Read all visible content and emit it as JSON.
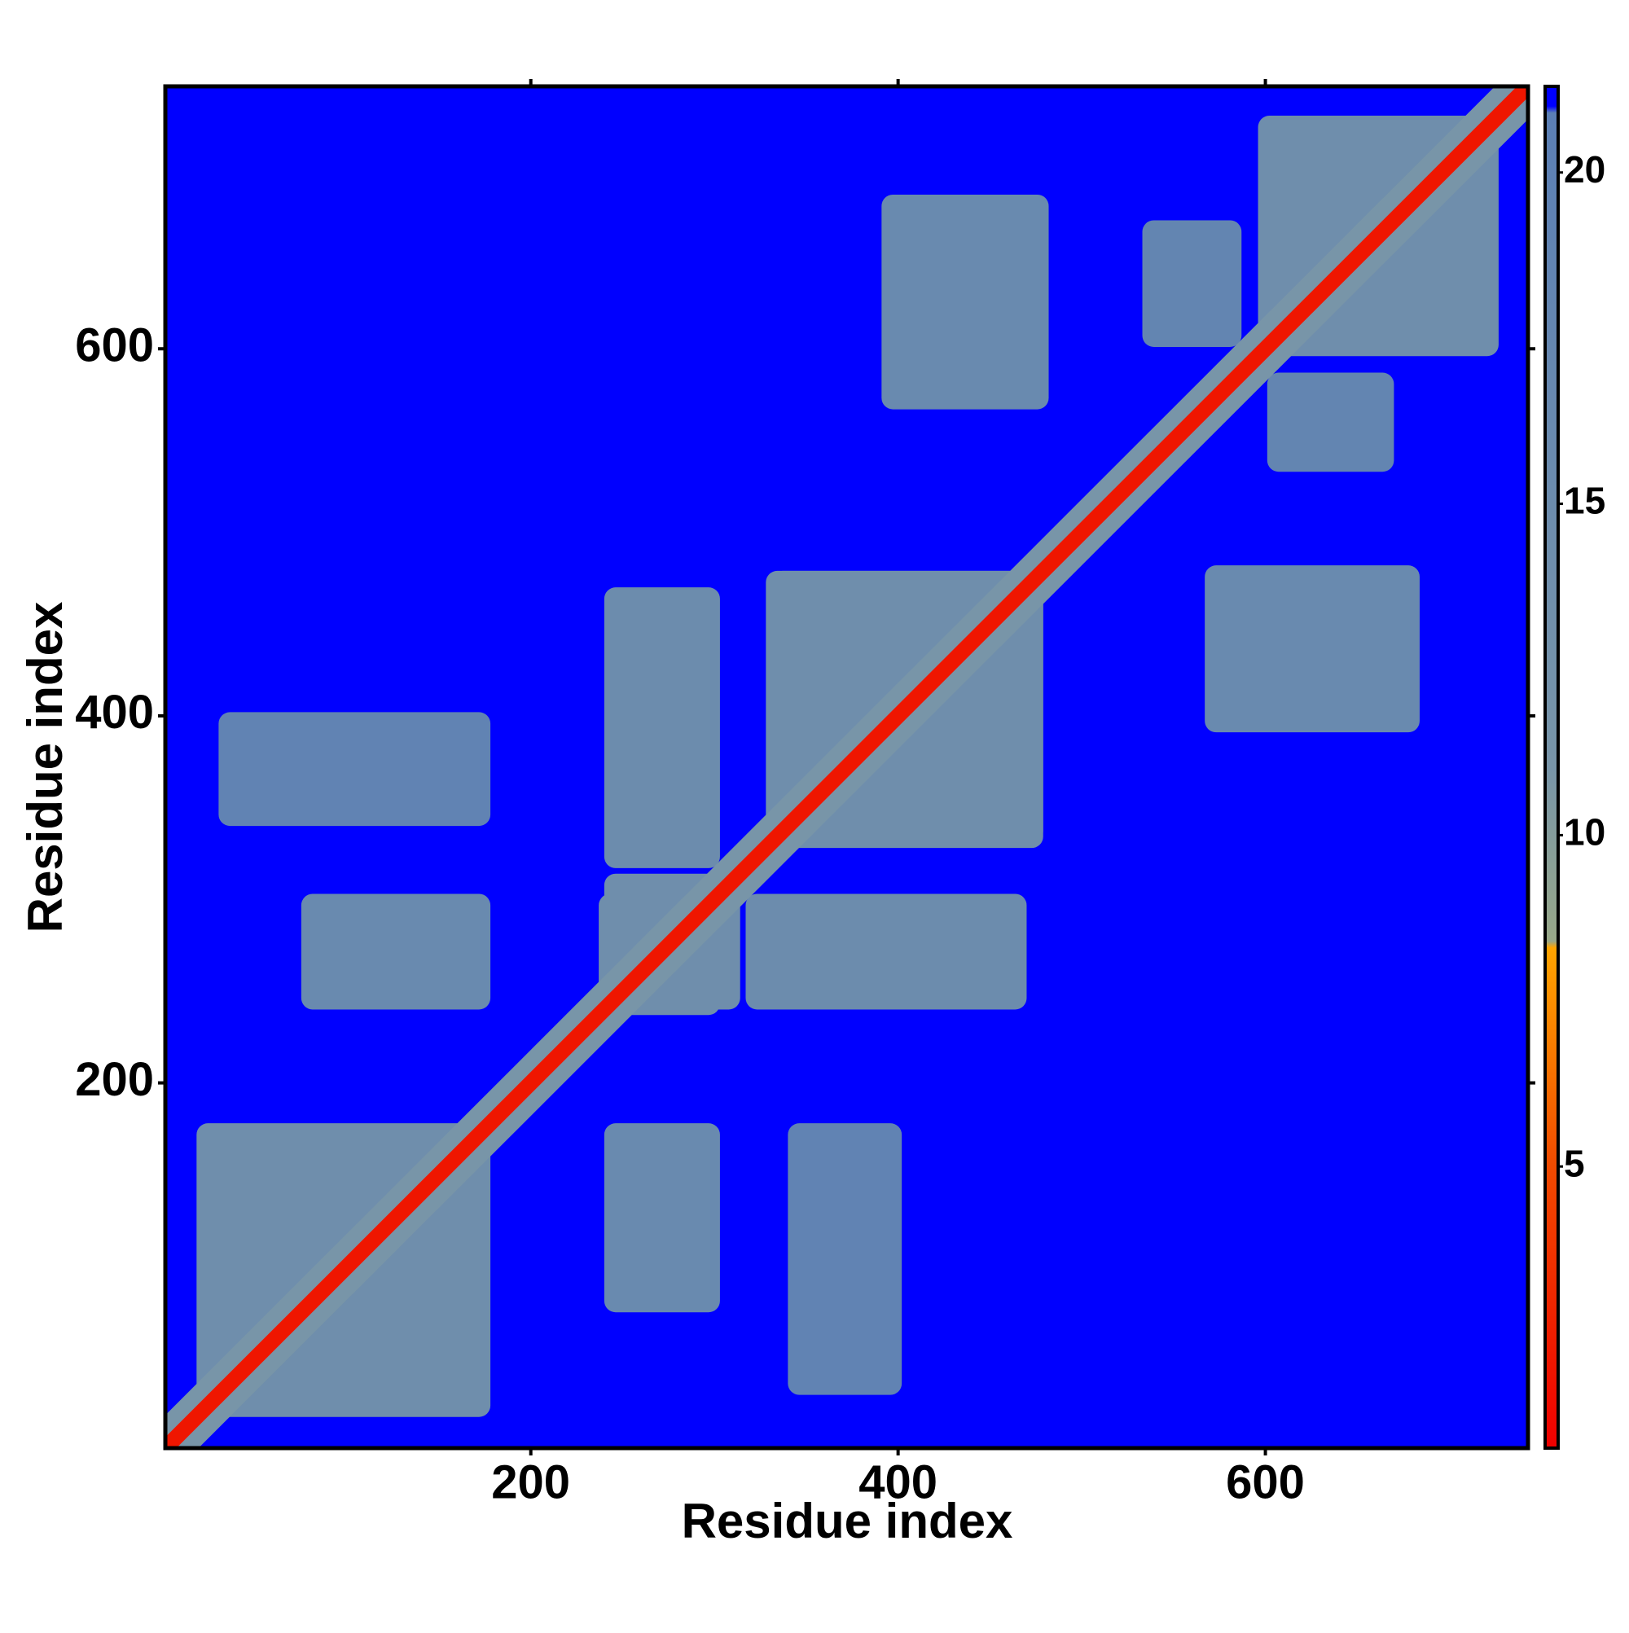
{
  "chart_data": {
    "type": "heatmap",
    "xlabel": "Residue index",
    "ylabel": "Residue index",
    "xlim": [
      1,
      743
    ],
    "ylim": [
      1,
      743
    ],
    "xticks": [
      200,
      400,
      600
    ],
    "yticks": [
      200,
      400,
      600
    ],
    "symmetric": true,
    "background_value": 21.3,
    "blocks": [
      {
        "x": [
          18,
          178
        ],
        "y": [
          18,
          178
        ],
        "value": 14
      },
      {
        "x": [
          240,
          303
        ],
        "y": [
          237,
          314
        ],
        "value": 14
      },
      {
        "x": [
          331,
          479
        ],
        "y": [
          328,
          479
        ],
        "value": 14
      },
      {
        "x": [
          596,
          727
        ],
        "y": [
          596,
          727
        ],
        "value": 14
      },
      {
        "x": [
          240,
          303
        ],
        "y": [
          317,
          470
        ],
        "value": 15
      },
      {
        "x": [
          75,
          178
        ],
        "y": [
          240,
          303
        ],
        "value": 16
      },
      {
        "x": [
          391,
          482
        ],
        "y": [
          567,
          684
        ],
        "value": 16
      },
      {
        "x": [
          30,
          178
        ],
        "y": [
          340,
          402
        ],
        "value": 19
      },
      {
        "x": [
          533,
          587
        ],
        "y": [
          601,
          670
        ],
        "value": 18
      }
    ],
    "diagonal": [
      {
        "value": 11,
        "halfwidth": 9
      },
      {
        "value": 2,
        "halfwidth": 3
      }
    ],
    "colorbar": {
      "lim": [
        0.75,
        21.3
      ],
      "ticks": [
        5,
        10,
        15,
        20
      ],
      "stops": [
        {
          "value": 0.75,
          "color": "#ee0000"
        },
        {
          "value": 5,
          "color": "#f04a00"
        },
        {
          "value": 8.3,
          "color": "#ffa500"
        },
        {
          "value": 8.4,
          "color": "#98a888"
        },
        {
          "value": 11,
          "color": "#7895a8"
        },
        {
          "value": 20.9,
          "color": "#5b7fb5"
        },
        {
          "value": 21,
          "color": "#0000ff"
        },
        {
          "value": 21.3,
          "color": "#0000ff"
        }
      ]
    }
  }
}
